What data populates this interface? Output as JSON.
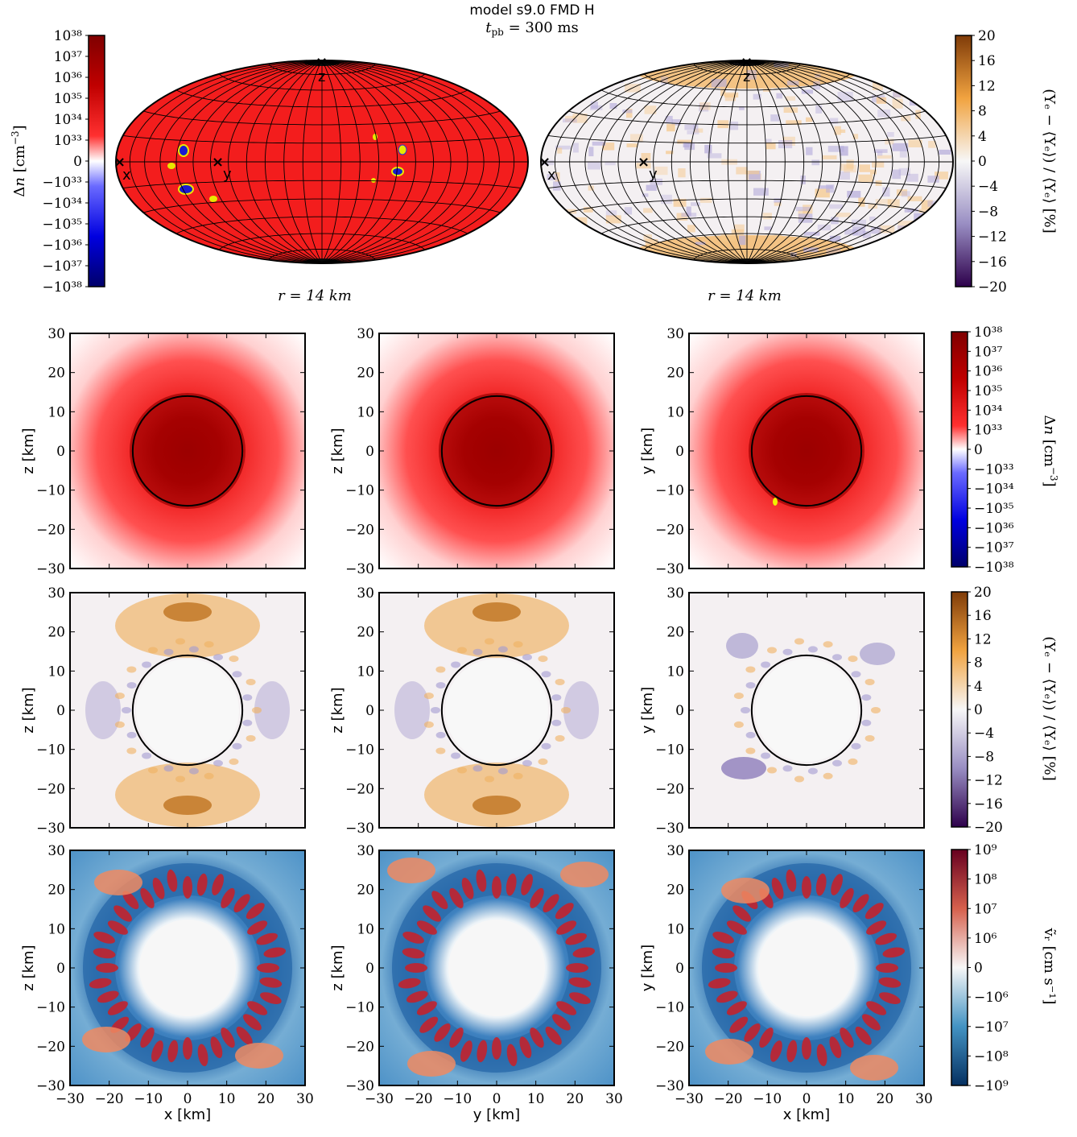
{
  "title": "model s9.0 FMD H",
  "subtitle": "t_pb = 300 ms",
  "chart_data": [
    {
      "type": "heatmap",
      "projection": "aitoff-hammer",
      "field": "dn",
      "radius_label": "r = 14 km",
      "axis_markers": [
        "x",
        "y",
        "z"
      ],
      "colorbar": {
        "label": "Δn [cm⁻³]",
        "ticks": [
          "10³⁸",
          "10³⁷",
          "10³⁶",
          "10³⁵",
          "10³⁴",
          "10³³",
          "0",
          "−10³³",
          "−10³⁴",
          "−10³⁵",
          "−10³⁶",
          "−10³⁷",
          "−10³⁸"
        ]
      },
      "notes": "predominantly red (~10³⁵ cm⁻³) with small negative (blue) spots"
    },
    {
      "type": "heatmap",
      "projection": "aitoff-hammer",
      "field": "ye",
      "radius_label": "r = 14 km",
      "axis_markers": [
        "x",
        "y",
        "z"
      ],
      "colorbar": {
        "label": "(Yₑ − ⟨Yₑ⟩) / ⟨Yₑ⟩ [%]",
        "ticks": [
          "20",
          "16",
          "12",
          "8",
          "4",
          "0",
          "−4",
          "−8",
          "−12",
          "−16",
          "−20"
        ]
      }
    },
    {
      "type": "heatmap",
      "field": "dn",
      "row": 1,
      "col": 0,
      "xlabel": "x [km]",
      "ylabel": "z [km]",
      "xlim": [
        -30,
        30
      ],
      "ylim": [
        -30,
        30
      ],
      "circle_radius_km": 14
    },
    {
      "type": "heatmap",
      "field": "dn",
      "row": 1,
      "col": 1,
      "xlabel": "y [km]",
      "ylabel": "z [km]",
      "xlim": [
        -30,
        30
      ],
      "ylim": [
        -30,
        30
      ],
      "circle_radius_km": 14
    },
    {
      "type": "heatmap",
      "field": "dn",
      "row": 1,
      "col": 2,
      "xlabel": "x [km]",
      "ylabel": "y [km]",
      "xlim": [
        -30,
        30
      ],
      "ylim": [
        -30,
        30
      ],
      "circle_radius_km": 14
    },
    {
      "type": "heatmap",
      "field": "ye",
      "row": 2,
      "col": 0,
      "xlabel": "x [km]",
      "ylabel": "z [km]",
      "xlim": [
        -30,
        30
      ],
      "ylim": [
        -30,
        30
      ],
      "circle_radius_km": 14
    },
    {
      "type": "heatmap",
      "field": "ye",
      "row": 2,
      "col": 1,
      "xlabel": "y [km]",
      "ylabel": "z [km]",
      "xlim": [
        -30,
        30
      ],
      "ylim": [
        -30,
        30
      ],
      "circle_radius_km": 14
    },
    {
      "type": "heatmap",
      "field": "ye",
      "row": 2,
      "col": 2,
      "xlabel": "x [km]",
      "ylabel": "y [km]",
      "xlim": [
        -30,
        30
      ],
      "ylim": [
        -30,
        30
      ],
      "circle_radius_km": 14
    },
    {
      "type": "heatmap",
      "field": "vr",
      "row": 3,
      "col": 0,
      "xlabel": "x [km]",
      "ylabel": "z [km]",
      "xlim": [
        -30,
        30
      ],
      "ylim": [
        -30,
        30
      ]
    },
    {
      "type": "heatmap",
      "field": "vr",
      "row": 3,
      "col": 1,
      "xlabel": "y [km]",
      "ylabel": "z [km]",
      "xlim": [
        -30,
        30
      ],
      "ylim": [
        -30,
        30
      ]
    },
    {
      "type": "heatmap",
      "field": "vr",
      "row": 3,
      "col": 2,
      "xlabel": "x [km]",
      "ylabel": "y [km]",
      "xlim": [
        -30,
        30
      ],
      "ylim": [
        -30,
        30
      ]
    }
  ],
  "axis_ticks": [
    "−30",
    "−20",
    "−10",
    "0",
    "10",
    "20",
    "30"
  ],
  "colorbars": {
    "dn": {
      "label": "Δn [cm⁻³]",
      "ticks": [
        "10³⁸",
        "10³⁷",
        "10³⁶",
        "10³⁵",
        "10³⁴",
        "10³³",
        "0",
        "−10³³",
        "−10³⁴",
        "−10³⁵",
        "−10³⁶",
        "−10³⁷",
        "−10³⁸"
      ]
    },
    "ye": {
      "label": "(Yₑ − ⟨Yₑ⟩) / ⟨Yₑ⟩ [%]",
      "ticks": [
        "20",
        "16",
        "12",
        "8",
        "4",
        "0",
        "−4",
        "−8",
        "−12",
        "−16",
        "−20"
      ]
    },
    "vr": {
      "label": "ṽᵣ [cm s⁻¹]",
      "ticks": [
        "10⁹",
        "10⁸",
        "10⁷",
        "10⁶",
        "0",
        "−10⁶",
        "−10⁷",
        "−10⁸",
        "−10⁹"
      ]
    }
  },
  "colors": {
    "dn_pos_dark": "#7f0000",
    "dn_pos_mid": "#e41a1c",
    "dn_neg": "#1010c0",
    "ye_pos": "#b35806",
    "ye_neg": "#542788",
    "vr_pos": "#b2182b",
    "vr_neg": "#2166ac"
  }
}
